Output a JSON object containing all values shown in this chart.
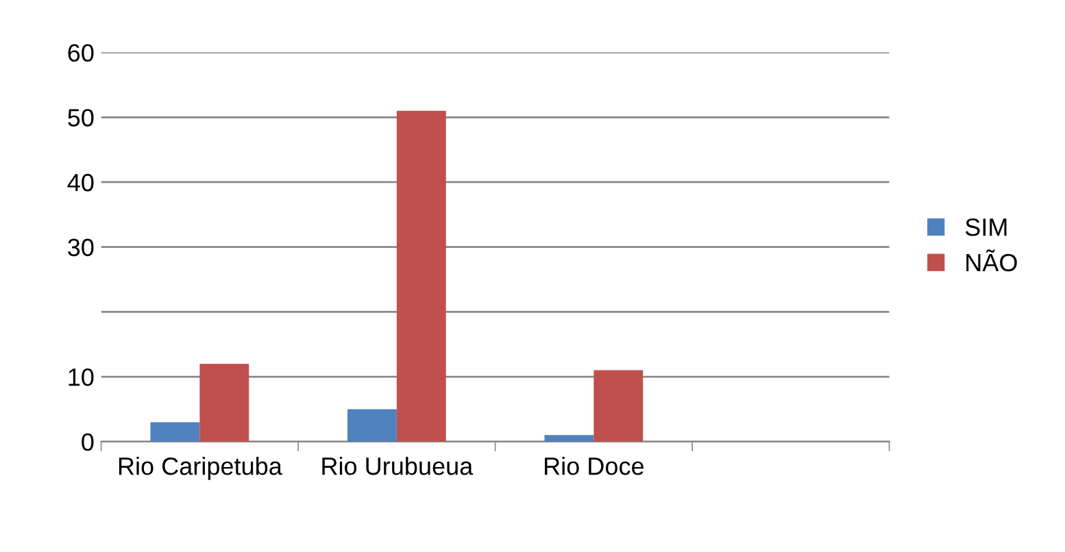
{
  "chart_data": {
    "type": "bar",
    "categories": [
      "Rio Caripetuba",
      "Rio Urubueua",
      "Rio Doce",
      null
    ],
    "series": [
      {
        "name": "SIM",
        "color": "#4f81bd",
        "values": [
          3,
          5,
          1,
          null
        ]
      },
      {
        "name": "NÃO",
        "color": "#c0504d",
        "values": [
          12,
          51,
          11,
          null
        ]
      }
    ],
    "ylim": [
      0,
      60
    ],
    "yticks": [
      0,
      10,
      {
        "value": 20,
        "label": null
      },
      30,
      40,
      50,
      60
    ],
    "grid": "y",
    "legend": "right"
  }
}
